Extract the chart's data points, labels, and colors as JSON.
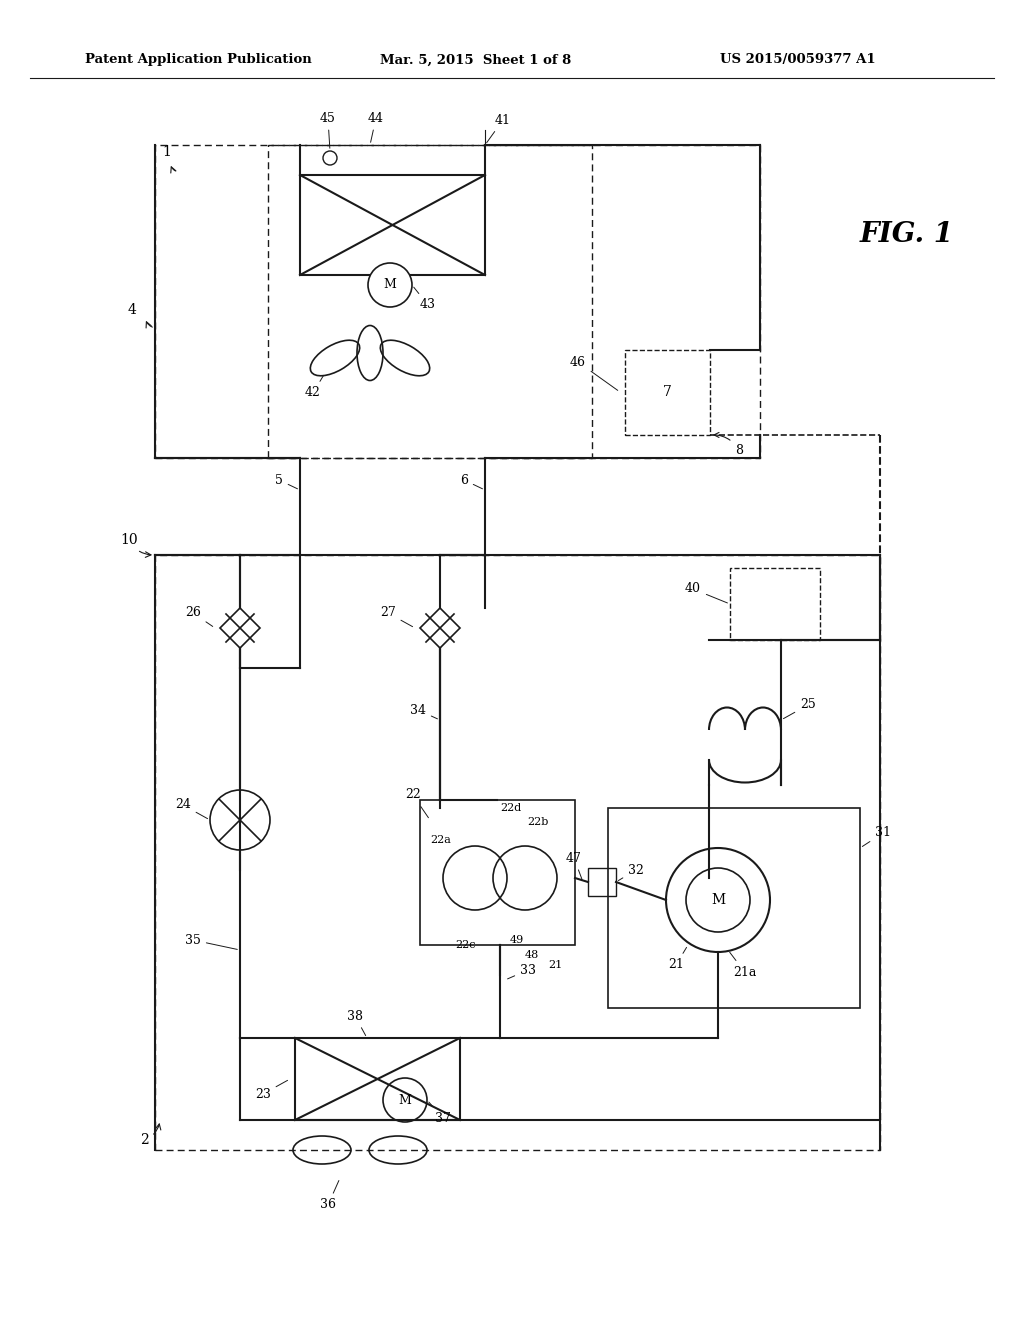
{
  "bg_color": "#ffffff",
  "line_color": "#1a1a1a",
  "header_left": "Patent Application Publication",
  "header_mid": "Mar. 5, 2015  Sheet 1 of 8",
  "header_right": "US 2015/0059377 A1",
  "fig_label": "FIG. 1"
}
